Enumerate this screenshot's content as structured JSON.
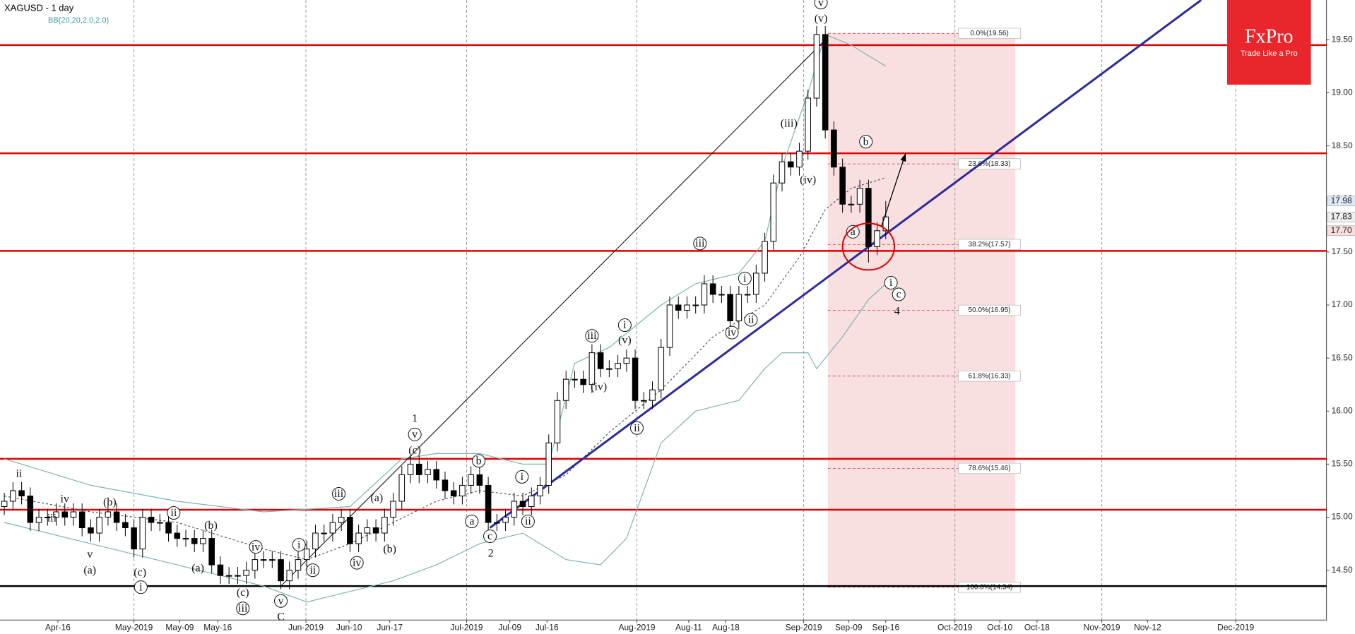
{
  "chart_data": {
    "type": "candlestick",
    "title": "XAGUSD - 1 day",
    "subtitle": "BB(20,20,2.0,2.0)",
    "xlim": [
      -0.5,
      153
    ],
    "ylim": [
      14.03,
      19.875
    ],
    "xticks": [
      {
        "value": 6.2,
        "label": "Apr-16"
      },
      {
        "value": 15,
        "label": "May-2019"
      },
      {
        "value": 20.3,
        "label": "May-09"
      },
      {
        "value": 24.7,
        "label": "May-16"
      },
      {
        "value": 34.9,
        "label": "Jun-2019"
      },
      {
        "value": 39.9,
        "label": "Jun-10"
      },
      {
        "value": 44.6,
        "label": "Jun-17"
      },
      {
        "value": 53.5,
        "label": "Jul-2019"
      },
      {
        "value": 58.5,
        "label": "Jul-09"
      },
      {
        "value": 62.8,
        "label": "Jul-16"
      },
      {
        "value": 73.2,
        "label": "Aug-2019"
      },
      {
        "value": 79.2,
        "label": "Aug-11"
      },
      {
        "value": 83.5,
        "label": "Aug-18"
      },
      {
        "value": 92.5,
        "label": "Sep-2019"
      },
      {
        "value": 97.7,
        "label": "Sep-09"
      },
      {
        "value": 102,
        "label": "Sep-16"
      },
      {
        "value": 110,
        "label": "Oct-2019"
      },
      {
        "value": 115.2,
        "label": "Oct-10"
      },
      {
        "value": 119.5,
        "label": "Oct-18"
      },
      {
        "value": 127,
        "label": "Nov-2019"
      },
      {
        "value": 132.3,
        "label": "Nov-12"
      },
      {
        "value": 142.5,
        "label": "Dec-2019"
      }
    ],
    "yticks": [
      {
        "value": 14.5,
        "label": "14.50"
      },
      {
        "value": 15,
        "label": "15.00"
      },
      {
        "value": 15.5,
        "label": "15.50"
      },
      {
        "value": 16,
        "label": "16.00"
      },
      {
        "value": 16.5,
        "label": "16.50"
      },
      {
        "value": 17,
        "label": "17.00"
      },
      {
        "value": 17.5,
        "label": "17.50"
      },
      {
        "value": 18,
        "label": "18.00"
      },
      {
        "value": 18.5,
        "label": "18.50"
      },
      {
        "value": 19,
        "label": "19.00"
      },
      {
        "value": 19.5,
        "label": "19.50"
      }
    ],
    "x": [
      0,
      1,
      2,
      3,
      4,
      5,
      6,
      7,
      8,
      9,
      10,
      11,
      12,
      13,
      14,
      15,
      16,
      17,
      18,
      19,
      20,
      21,
      22,
      23,
      24,
      25,
      26,
      27,
      28,
      29,
      30,
      31,
      32,
      33,
      34,
      35,
      36,
      37,
      38,
      39,
      40,
      41,
      42,
      43,
      44,
      45,
      46,
      47,
      48,
      49,
      50,
      51,
      52,
      53,
      54,
      55,
      56,
      57,
      58,
      59,
      60,
      61,
      62,
      63,
      64,
      65,
      66,
      67,
      68,
      69,
      70,
      71,
      72,
      73,
      74,
      75,
      76,
      77,
      78,
      79,
      80,
      81,
      82,
      83,
      84,
      85,
      86,
      87,
      88,
      89,
      90,
      91,
      92,
      93,
      94,
      95,
      96,
      97,
      98,
      99,
      100,
      101,
      102
    ],
    "open": [
      15.1,
      15.15,
      15.25,
      15.2,
      14.95,
      15.0,
      15.0,
      15.05,
      15.0,
      15.05,
      14.9,
      14.85,
      15.0,
      15.05,
      14.95,
      14.9,
      14.7,
      15.0,
      14.95,
      14.95,
      14.85,
      14.8,
      14.8,
      14.75,
      14.8,
      14.55,
      14.45,
      14.45,
      14.45,
      14.5,
      14.6,
      14.6,
      14.6,
      14.4,
      14.5,
      14.6,
      14.7,
      14.85,
      14.85,
      14.95,
      15.0,
      14.75,
      14.85,
      14.9,
      14.85,
      15.0,
      15.15,
      15.4,
      15.5,
      15.4,
      15.45,
      15.35,
      15.25,
      15.2,
      15.3,
      15.4,
      15.3,
      14.95,
      14.95,
      15.0,
      15.15,
      15.1,
      15.2,
      15.3,
      15.7,
      16.1,
      16.3,
      16.3,
      16.25,
      16.55,
      16.4,
      16.4,
      16.45,
      16.5,
      16.1,
      16.1,
      16.2,
      16.6,
      17.0,
      16.95,
      17.0,
      17.0,
      17.2,
      17.1,
      17.1,
      16.85,
      17.1,
      17.1,
      17.3,
      17.6,
      18.15,
      18.35,
      18.3,
      18.45,
      18.95,
      19.55,
      18.65,
      18.3,
      17.95,
      17.95,
      18.1,
      17.55,
      17.7
    ],
    "high": [
      15.23,
      15.33,
      15.33,
      15.28,
      15.08,
      15.08,
      15.13,
      15.13,
      15.13,
      15.13,
      14.98,
      15.08,
      15.13,
      15.13,
      15.03,
      14.98,
      15.08,
      15.08,
      15.03,
      15.03,
      14.93,
      14.88,
      14.88,
      14.88,
      14.88,
      14.63,
      14.53,
      14.53,
      14.58,
      14.68,
      14.68,
      14.68,
      14.68,
      14.58,
      14.68,
      14.78,
      14.93,
      14.93,
      15.03,
      15.08,
      15.08,
      14.93,
      14.98,
      14.98,
      15.08,
      15.23,
      15.48,
      15.58,
      15.58,
      15.53,
      15.53,
      15.43,
      15.33,
      15.38,
      15.48,
      15.48,
      15.38,
      15.03,
      15.08,
      15.23,
      15.23,
      15.28,
      15.38,
      15.78,
      16.18,
      16.38,
      16.38,
      16.38,
      16.63,
      16.63,
      16.48,
      16.53,
      16.58,
      16.58,
      16.18,
      16.28,
      16.68,
      17.08,
      17.08,
      17.08,
      17.08,
      17.28,
      17.28,
      17.18,
      17.18,
      17.18,
      17.18,
      17.38,
      17.68,
      18.23,
      18.43,
      18.43,
      18.53,
      19.03,
      19.63,
      19.63,
      18.73,
      18.38,
      18.03,
      18.18,
      18.18,
      17.78,
      17.98
    ],
    "low": [
      15.02,
      15.07,
      15.12,
      14.87,
      14.87,
      14.92,
      14.92,
      14.92,
      14.92,
      14.82,
      14.77,
      14.77,
      14.92,
      14.87,
      14.82,
      14.62,
      14.62,
      14.87,
      14.87,
      14.77,
      14.72,
      14.72,
      14.67,
      14.67,
      14.47,
      14.37,
      14.37,
      14.37,
      14.37,
      14.42,
      14.52,
      14.52,
      14.32,
      14.32,
      14.42,
      14.52,
      14.62,
      14.77,
      14.77,
      14.87,
      14.67,
      14.67,
      14.77,
      14.77,
      14.77,
      14.92,
      15.07,
      15.32,
      15.32,
      15.32,
      15.27,
      15.17,
      15.12,
      15.12,
      15.22,
      15.22,
      14.87,
      14.87,
      14.87,
      14.92,
      15.02,
      15.02,
      15.12,
      15.22,
      15.62,
      16.02,
      16.22,
      16.17,
      16.17,
      16.32,
      16.32,
      16.32,
      16.37,
      16.02,
      16.02,
      16.02,
      16.12,
      16.52,
      16.87,
      16.87,
      16.92,
      16.92,
      17.02,
      17.02,
      16.77,
      16.77,
      17.02,
      17.02,
      17.22,
      17.52,
      18.07,
      18.22,
      18.22,
      18.37,
      18.87,
      18.57,
      18.22,
      17.87,
      17.87,
      17.87,
      17.4,
      17.47,
      17.62
    ],
    "close": [
      15.15,
      15.25,
      15.2,
      14.95,
      15.0,
      15.0,
      15.05,
      15.0,
      15.05,
      14.9,
      14.85,
      15.0,
      15.05,
      14.95,
      14.9,
      14.7,
      15.0,
      14.95,
      14.95,
      14.85,
      14.8,
      14.8,
      14.75,
      14.8,
      14.55,
      14.45,
      14.45,
      14.45,
      14.5,
      14.6,
      14.6,
      14.6,
      14.4,
      14.5,
      14.6,
      14.7,
      14.85,
      14.85,
      14.95,
      15.0,
      14.75,
      14.85,
      14.9,
      14.85,
      15.0,
      15.15,
      15.4,
      15.5,
      15.4,
      15.45,
      15.35,
      15.25,
      15.2,
      15.3,
      15.4,
      15.3,
      14.95,
      14.95,
      15.0,
      15.15,
      15.1,
      15.2,
      15.3,
      15.7,
      16.1,
      16.3,
      16.3,
      16.25,
      16.55,
      16.4,
      16.4,
      16.45,
      16.5,
      16.1,
      16.1,
      16.2,
      16.6,
      17.0,
      16.95,
      17.0,
      17.0,
      17.2,
      17.1,
      17.1,
      16.85,
      17.1,
      17.1,
      17.3,
      17.6,
      18.15,
      18.35,
      18.3,
      18.45,
      18.95,
      19.55,
      18.65,
      18.3,
      17.95,
      17.95,
      18.1,
      17.55,
      17.7,
      17.83
    ],
    "bands": [
      {
        "color": "#7fb3b3",
        "dash": false,
        "x": [
          0,
          10,
          20,
          30,
          40,
          46,
          50,
          55,
          60,
          63,
          66,
          70,
          76,
          80,
          85,
          88,
          90,
          93,
          95,
          98,
          101,
          102
        ],
        "values": [
          15.55,
          15.3,
          15.15,
          15.05,
          15.1,
          15.55,
          15.6,
          15.6,
          15.5,
          15.5,
          16.45,
          16.6,
          17.0,
          17.2,
          17.3,
          17.6,
          18.3,
          19.0,
          19.55,
          19.45,
          19.3,
          19.25
        ]
      },
      {
        "color": "#555555",
        "dash": true,
        "x": [
          0,
          10,
          20,
          30,
          35,
          40,
          45,
          50,
          55,
          60,
          65,
          70,
          76,
          82,
          88,
          92,
          95,
          98,
          102
        ],
        "values": [
          15.2,
          15.05,
          14.95,
          14.7,
          14.6,
          14.75,
          14.95,
          15.15,
          15.25,
          15.2,
          15.4,
          15.8,
          16.2,
          16.7,
          17.0,
          17.45,
          17.9,
          18.1,
          18.2
        ]
      },
      {
        "color": "#7fb3b3",
        "dash": false,
        "x": [
          0,
          10,
          20,
          30,
          35,
          40,
          45,
          50,
          55,
          60,
          65,
          69,
          72,
          76,
          80,
          85,
          88,
          90,
          93,
          94,
          97,
          100,
          102
        ],
        "values": [
          14.95,
          14.75,
          14.55,
          14.35,
          14.2,
          14.3,
          14.4,
          14.55,
          14.75,
          14.85,
          14.6,
          14.55,
          14.8,
          15.7,
          16.0,
          16.1,
          16.4,
          16.55,
          16.55,
          16.4,
          16.7,
          17.05,
          17.2
        ]
      }
    ],
    "levels": [
      {
        "value": 19.45,
        "color": "#e00000"
      },
      {
        "value": 18.43,
        "color": "#e00000"
      },
      {
        "value": 17.51,
        "color": "#e00000"
      },
      {
        "value": 15.55,
        "color": "#e00000"
      },
      {
        "value": 15.07,
        "color": "#e00000"
      },
      {
        "value": 14.35,
        "color": "#000000"
      }
    ],
    "fib": {
      "x": [
        95.3,
        117
      ],
      "color": "#f9dfe0",
      "levels": [
        {
          "value": 19.56,
          "label": "0.0%(19.56)"
        },
        {
          "value": 18.33,
          "label": "23.6%(18.33)"
        },
        {
          "value": 17.57,
          "label": "38.2%(17.57)"
        },
        {
          "value": 16.95,
          "label": "50.0%(16.95)"
        },
        {
          "value": 16.33,
          "label": "61.8%(16.33)"
        },
        {
          "value": 15.46,
          "label": "78.6%(15.46)"
        },
        {
          "value": 14.34,
          "label": "100.0%(14.34)"
        }
      ]
    },
    "trend_lines": [
      {
        "color": "#2b2b9a",
        "width": 3,
        "points": [
          [
            56.2,
            14.9
          ],
          [
            138.5,
            19.875
          ]
        ]
      },
      {
        "color": "#000000",
        "width": 1,
        "points": [
          [
            32,
            14.35
          ],
          [
            95,
            19.5
          ]
        ]
      }
    ],
    "highlight": {
      "x": 100,
      "y": 17.55,
      "color": "#e00000"
    },
    "arrow": {
      "points": [
        [
          101.5,
          17.74
        ],
        [
          104.3,
          18.43
        ]
      ]
    },
    "price_markers": [
      {
        "value": 17.98,
        "label": "17.98",
        "color": "#dde9f7"
      },
      {
        "value": 17.83,
        "label": "17.83",
        "color": "#eeeeee"
      },
      {
        "value": 17.7,
        "label": "17.70",
        "color": "#fbdde0"
      }
    ],
    "annotations": [
      {
        "text": "ii",
        "x": 1.7,
        "y": 15.41
      },
      {
        "text": "iii",
        "x": 5.5,
        "y": 14.99
      },
      {
        "text": "iv",
        "x": 7.0,
        "y": 15.17
      },
      {
        "text": "v",
        "x": 9.9,
        "y": 14.65
      },
      {
        "text": "(a)",
        "x": 9.9,
        "y": 14.5
      },
      {
        "text": "(b)",
        "x": 12.2,
        "y": 15.14
      },
      {
        "text": "ii",
        "x": 19.6,
        "y": 15.04,
        "circled": true
      },
      {
        "text": "(c)",
        "x": 15.7,
        "y": 14.48
      },
      {
        "text": "i",
        "x": 15.8,
        "y": 14.34,
        "circled": true
      },
      {
        "text": "(a)",
        "x": 22.4,
        "y": 14.52
      },
      {
        "text": "(b)",
        "x": 23.9,
        "y": 14.92
      },
      {
        "text": "iv",
        "x": 29.1,
        "y": 14.72,
        "circled": true
      },
      {
        "text": "(c)",
        "x": 27.6,
        "y": 14.29
      },
      {
        "text": "iii",
        "x": 27.6,
        "y": 14.14,
        "circled": true
      },
      {
        "text": "v",
        "x": 32.0,
        "y": 14.21,
        "circled": true
      },
      {
        "text": "C",
        "x": 32.0,
        "y": 14.06,
        "major": true
      },
      {
        "text": "i",
        "x": 34.1,
        "y": 14.74,
        "circled": true
      },
      {
        "text": "ii",
        "x": 35.7,
        "y": 14.5,
        "circled": true
      },
      {
        "text": "iii",
        "x": 38.7,
        "y": 15.22,
        "circled": true
      },
      {
        "text": "iv",
        "x": 40.8,
        "y": 14.57,
        "circled": true
      },
      {
        "text": "(a)",
        "x": 43.1,
        "y": 15.18
      },
      {
        "text": "(b)",
        "x": 44.6,
        "y": 14.7
      },
      {
        "text": "1",
        "x": 47.5,
        "y": 15.93,
        "major": true
      },
      {
        "text": "v",
        "x": 47.5,
        "y": 15.78,
        "circled": true
      },
      {
        "text": "(c)",
        "x": 47.5,
        "y": 15.63
      },
      {
        "text": "b",
        "x": 54.9,
        "y": 15.53,
        "circled": true
      },
      {
        "text": "a",
        "x": 54.1,
        "y": 14.96,
        "circled": true
      },
      {
        "text": "c",
        "x": 56.2,
        "y": 14.82,
        "circled": true
      },
      {
        "text": "2",
        "x": 56.3,
        "y": 14.66,
        "major": true
      },
      {
        "text": "i",
        "x": 59.9,
        "y": 15.38,
        "circled": true
      },
      {
        "text": "ii",
        "x": 60.6,
        "y": 14.96,
        "circled": true
      },
      {
        "text": "iii",
        "x": 68.0,
        "y": 16.71,
        "circled": true
      },
      {
        "text": "(iv)",
        "x": 68.8,
        "y": 16.23
      },
      {
        "text": "i",
        "x": 71.8,
        "y": 16.81,
        "circled": true
      },
      {
        "text": "(v)",
        "x": 71.8,
        "y": 16.67
      },
      {
        "text": "ii",
        "x": 73.2,
        "y": 15.84,
        "circled": true
      },
      {
        "text": "iii",
        "x": 80.5,
        "y": 17.58,
        "circled": true
      },
      {
        "text": "i",
        "x": 85.7,
        "y": 17.25,
        "circled": true
      },
      {
        "text": "ii",
        "x": 86.4,
        "y": 16.86,
        "circled": true
      },
      {
        "text": "iv",
        "x": 84.2,
        "y": 16.74,
        "circled": true
      },
      {
        "text": "(iii)",
        "x": 90.8,
        "y": 18.71
      },
      {
        "text": "(iv)",
        "x": 93.0,
        "y": 18.18
      },
      {
        "text": "(v)",
        "x": 94.5,
        "y": 19.7
      },
      {
        "text": "v",
        "x": 94.5,
        "y": 19.85,
        "circled": true
      },
      {
        "text": "b",
        "x": 99.7,
        "y": 18.54,
        "circled": true
      },
      {
        "text": "a",
        "x": 98.2,
        "y": 17.69,
        "circled": true
      },
      {
        "text": "i",
        "x": 102.6,
        "y": 17.21,
        "circled": true
      },
      {
        "text": "c",
        "x": 103.5,
        "y": 17.1,
        "circled": true
      },
      {
        "text": "4",
        "x": 103.3,
        "y": 16.94,
        "major": true
      }
    ],
    "logo": {
      "name": "FxPro",
      "tagline": "Trade Like a Pro",
      "color": "#e8262b"
    }
  }
}
